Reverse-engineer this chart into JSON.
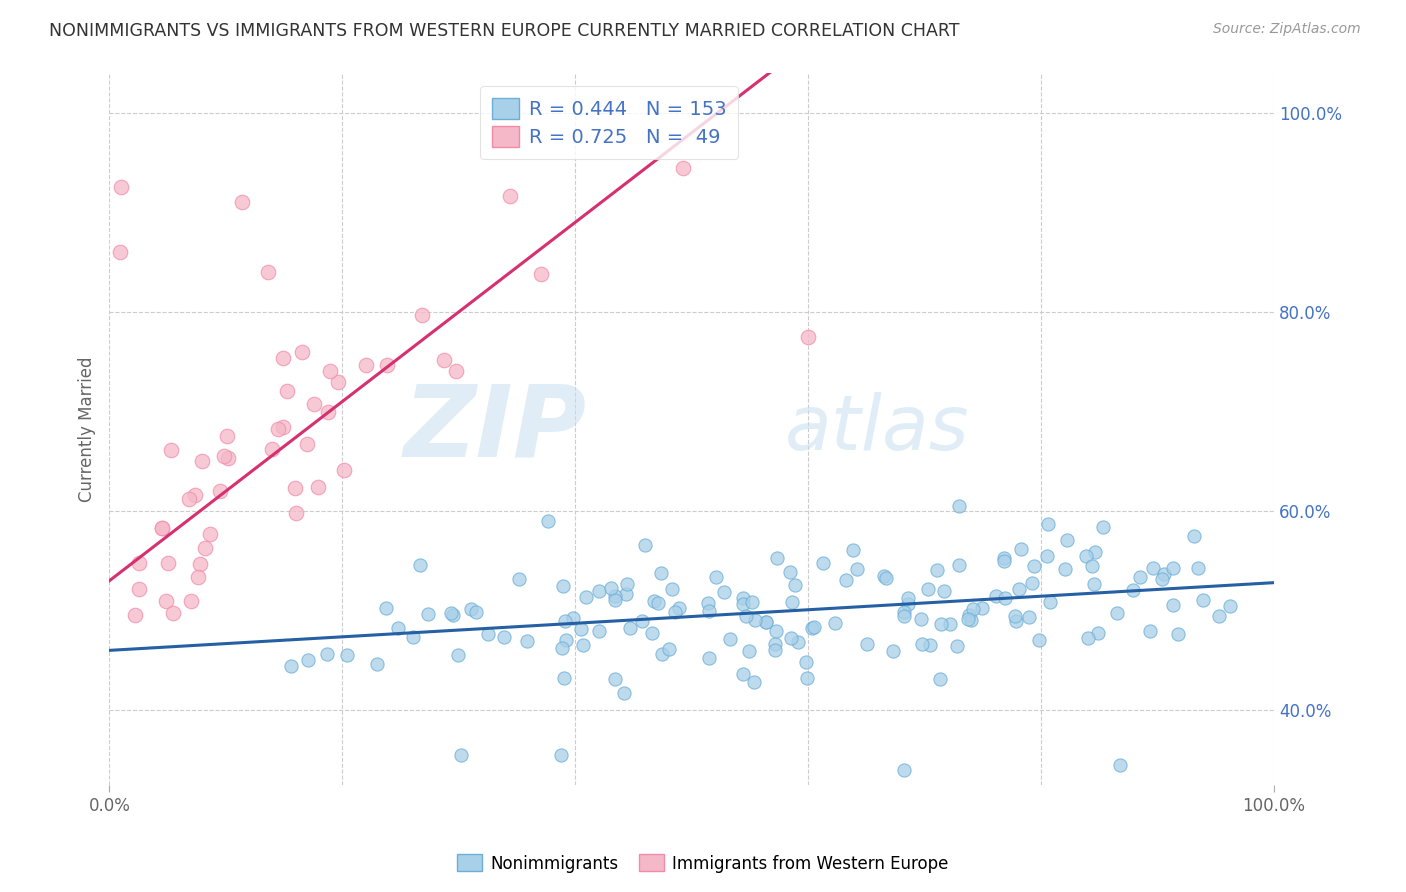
{
  "title": "NONIMMIGRANTS VS IMMIGRANTS FROM WESTERN EUROPE CURRENTLY MARRIED CORRELATION CHART",
  "source": "Source: ZipAtlas.com",
  "ylabel": "Currently Married",
  "watermark_zip": "ZIP",
  "watermark_atlas": "atlas",
  "xlim": [
    0.0,
    1.0
  ],
  "ylim": [
    0.325,
    1.04
  ],
  "xticks": [
    0.0,
    1.0
  ],
  "yticks": [
    0.4,
    0.6,
    0.8,
    1.0
  ],
  "xtick_labels": [
    "0.0%",
    "100.0%"
  ],
  "ytick_labels": [
    "40.0%",
    "60.0%",
    "80.0%",
    "100.0%"
  ],
  "blue_R": 0.444,
  "blue_N": 153,
  "pink_R": 0.725,
  "pink_N": 49,
  "blue_color": "#a8d0e8",
  "pink_color": "#f4b8c8",
  "blue_edge_color": "#6baed6",
  "pink_edge_color": "#f48aaa",
  "blue_line_color": "#2660a4",
  "pink_line_color": "#d63070",
  "legend_label_blue": "Nonimmigrants",
  "legend_label_pink": "Immigrants from Western Europe",
  "background_color": "#ffffff",
  "grid_color": "#cccccc",
  "title_color": "#333333",
  "axis_label_color": "#666666",
  "tick_color_right": "#4472c4",
  "blue_intercept": 0.46,
  "blue_slope": 0.068,
  "pink_intercept": 0.53,
  "pink_slope": 0.9,
  "seed": 99
}
